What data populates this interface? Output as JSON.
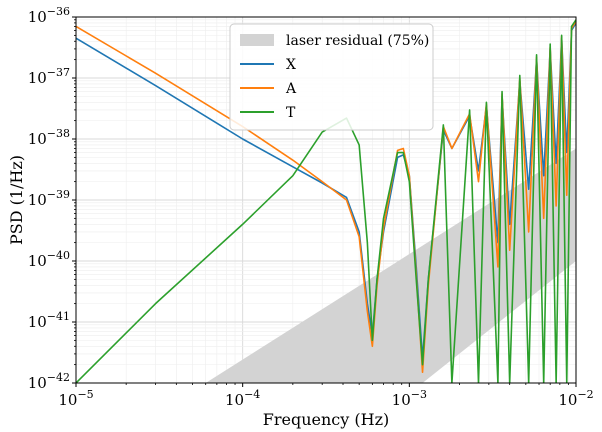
{
  "chart_data": {
    "type": "line",
    "title": "",
    "xlabel": "Frequency (Hz)",
    "ylabel": "PSD (1/Hz)",
    "x_scale": "log",
    "y_scale": "log",
    "xlim": [
      1e-05,
      0.01
    ],
    "ylim": [
      1e-42,
      1e-36
    ],
    "grid": true,
    "legend_placement": "top-center",
    "x_ticks": [
      {
        "base": "10",
        "exp": "−5",
        "value": 1e-05
      },
      {
        "base": "10",
        "exp": "−4",
        "value": 0.0001
      },
      {
        "base": "10",
        "exp": "−3",
        "value": 0.001
      },
      {
        "base": "10",
        "exp": "−2",
        "value": 0.01
      }
    ],
    "y_ticks": [
      {
        "base": "10",
        "exp": "−42",
        "value": 1e-42
      },
      {
        "base": "10",
        "exp": "−41",
        "value": 1e-41
      },
      {
        "base": "10",
        "exp": "−40",
        "value": 1e-40
      },
      {
        "base": "10",
        "exp": "−39",
        "value": 1e-39
      },
      {
        "base": "10",
        "exp": "−38",
        "value": 1e-38
      },
      {
        "base": "10",
        "exp": "−37",
        "value": 1e-37
      },
      {
        "base": "10",
        "exp": "−36",
        "value": 1e-36
      }
    ],
    "band": {
      "name": "laser residual (75%)",
      "color": "#d3d3d3",
      "x": [
        6e-05,
        0.0001,
        0.0003,
        0.001,
        0.003,
        0.01
      ],
      "lower": [
        1e-42,
        2.8e-42,
        2.5e-41,
        2.8e-40,
        2.5e-39,
        2.8e-38
      ],
      "upper": [
        1.2e-42,
        3.3e-42,
        3e-41,
        3.4e-40,
        3e-39,
        3.4e-38
      ],
      "lower_end": [
        1.2e-42,
        1e-40
      ],
      "upper_start": [
        6e-05,
        1e-42
      ],
      "band_top_at_xmax": 7e-39,
      "band_bottom_at_xmax": 1e-40
    },
    "band_corners": {
      "top": [
        [
          6e-05,
          1e-42
        ],
        [
          0.01,
          7e-39
        ]
      ],
      "bottom": [
        [
          0.0012,
          1e-42
        ],
        [
          0.01,
          1e-40
        ]
      ]
    },
    "series": [
      {
        "name": "X",
        "color": "#1f77b4",
        "x": [
          1e-05,
          3e-05,
          0.0001,
          0.0002,
          0.0003,
          0.00042,
          0.0005,
          0.00056,
          0.0006,
          0.00064,
          0.0007,
          0.00085,
          0.00092,
          0.001,
          0.0011,
          0.0012,
          0.0013,
          0.0016,
          0.0018,
          0.0023,
          0.0026,
          0.0029,
          0.0034,
          0.0036,
          0.004,
          0.0046,
          0.0052,
          0.0058,
          0.0064,
          0.007,
          0.0076,
          0.0082,
          0.0088,
          0.0094,
          0.01
        ],
        "y": [
          4.5e-37,
          7.5e-38,
          1e-38,
          3.5e-39,
          1.9e-39,
          1.1e-39,
          3e-40,
          2e-41,
          6e-42,
          5e-41,
          3e-40,
          5e-39,
          5.5e-39,
          2.5e-39,
          8e-41,
          2.5e-42,
          5e-41,
          1.4e-38,
          7e-39,
          2.4e-38,
          3e-39,
          3.5e-38,
          2e-40,
          5e-38,
          4e-40,
          9e-38,
          1.5e-39,
          2e-37,
          2.5e-39,
          3e-37,
          4e-39,
          4.5e-37,
          6e-39,
          6e-37,
          8e-37
        ]
      },
      {
        "name": "A",
        "color": "#ff7f0e",
        "x": [
          1e-05,
          3e-05,
          0.0001,
          0.0002,
          0.0003,
          0.00042,
          0.0005,
          0.00056,
          0.0006,
          0.00064,
          0.0007,
          0.00085,
          0.00092,
          0.001,
          0.0011,
          0.0012,
          0.0013,
          0.0016,
          0.0018,
          0.0023,
          0.0026,
          0.0029,
          0.0034,
          0.0036,
          0.004,
          0.0046,
          0.0052,
          0.0058,
          0.0064,
          0.007,
          0.0076,
          0.0082,
          0.0088,
          0.0094,
          0.01
        ],
        "y": [
          7e-37,
          1.2e-37,
          1.6e-38,
          4.5e-39,
          2e-39,
          1e-39,
          2.5e-40,
          1.5e-41,
          4e-42,
          4e-41,
          3.5e-40,
          6.5e-39,
          7e-39,
          2.5e-39,
          6e-41,
          1.5e-42,
          4e-41,
          1.6e-38,
          7e-39,
          2.6e-38,
          2e-39,
          3.8e-38,
          8e-41,
          5.5e-38,
          1.5e-40,
          1e-37,
          3e-40,
          2.2e-37,
          5e-40,
          3.2e-37,
          8e-40,
          4.8e-37,
          1.2e-39,
          6.5e-37,
          8.5e-37
        ]
      },
      {
        "name": "T",
        "color": "#2ca02c",
        "x": [
          1e-05,
          3e-05,
          0.0001,
          0.0002,
          0.0003,
          0.00042,
          0.0005,
          0.00056,
          0.0006,
          0.00064,
          0.0007,
          0.00085,
          0.00092,
          0.001,
          0.0011,
          0.0012,
          0.0013,
          0.0016,
          0.0018,
          0.0023,
          0.0026,
          0.0029,
          0.0034,
          0.0036,
          0.004,
          0.0046,
          0.0052,
          0.0058,
          0.0064,
          0.007,
          0.0076,
          0.0082,
          0.0088,
          0.0094,
          0.01
        ],
        "y": [
          1e-42,
          2e-41,
          4e-40,
          2.5e-39,
          1.3e-38,
          2.2e-38,
          8e-39,
          2e-40,
          5e-42,
          5e-41,
          5e-40,
          6e-39,
          6e-39,
          2e-39,
          5e-41,
          2e-42,
          5e-41,
          1.7e-38,
          1e-42,
          3e-38,
          1e-42,
          4e-38,
          1e-42,
          6e-38,
          1e-42,
          1.1e-37,
          1e-42,
          2.4e-37,
          1e-42,
          3.6e-37,
          1e-42,
          5e-37,
          1e-42,
          7e-37,
          9e-37
        ]
      }
    ]
  }
}
